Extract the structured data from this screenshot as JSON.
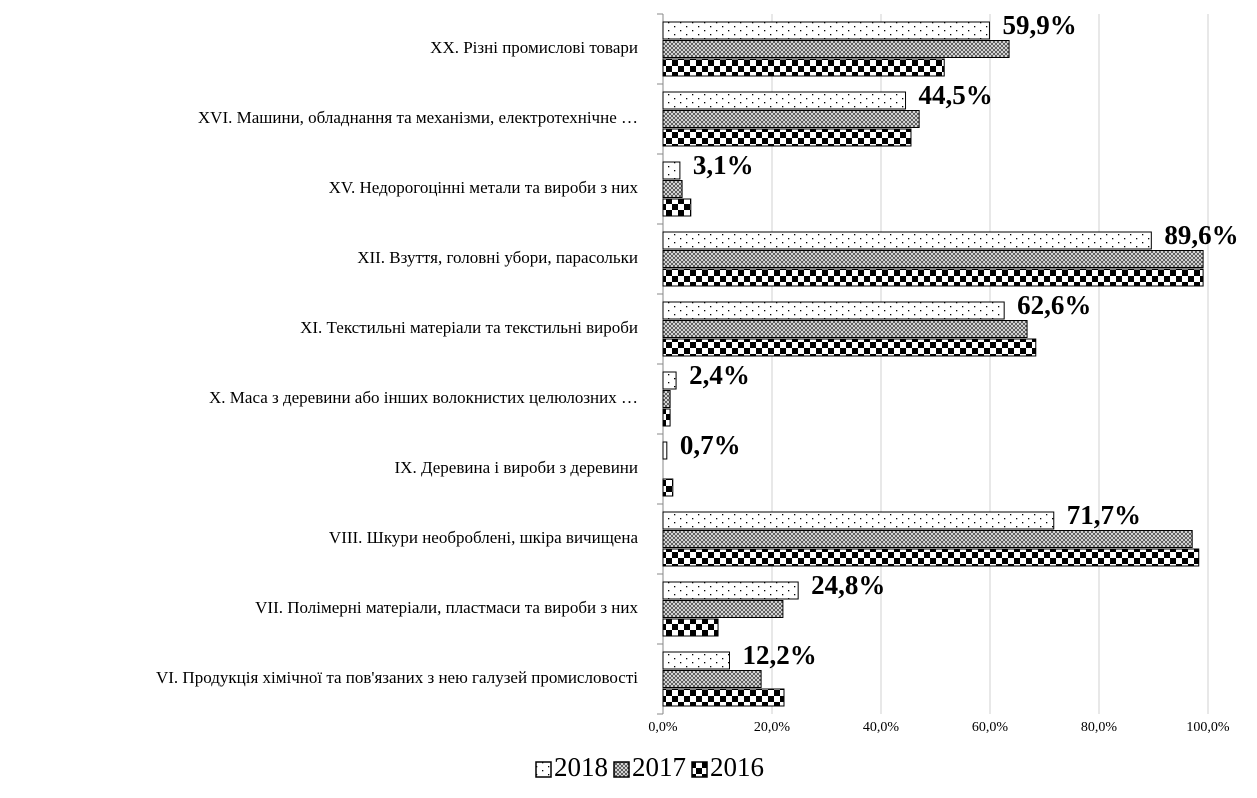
{
  "chart_data": {
    "type": "barh",
    "categories": [
      "XX. Різні промислові товари",
      "XVI. Машини, обладнання та механізми, електротехнічне …",
      "XV. Недорогоцінні метали та вироби з них",
      "XII. Взуття, головні убори, парасольки",
      "XI. Текстильні матеріали та текстильні вироби",
      "X. Маса з деревини або інших волокнистих целюлозних …",
      "IX. Деревина і вироби з деревини",
      "VIII. Шкури необроблені, шкіра вичищена",
      "VII. Полімерні матеріали, пластмаси та вироби з них",
      "VI. Продукція хімічної та пов'язаних з нею галузей промисловості"
    ],
    "series": [
      {
        "name": "2018",
        "color": "#ffffff",
        "pattern": "dots",
        "values": [
          59.9,
          44.5,
          3.1,
          89.6,
          62.6,
          2.4,
          0.7,
          71.7,
          24.8,
          12.2
        ],
        "value_labels": [
          "59,9%",
          "44,5%",
          "3,1%",
          "89,6%",
          "62,6%",
          "2,4%",
          "0,7%",
          "71,7%",
          "24,8%",
          "12,2%"
        ]
      },
      {
        "name": "2017",
        "color": "#808080",
        "pattern": "crosshatch",
        "values": [
          63.5,
          47.0,
          3.5,
          99.1,
          66.8,
          1.3,
          0,
          97.1,
          22.0,
          18.0
        ]
      },
      {
        "name": "2016",
        "color": "#000000",
        "pattern": "checker",
        "values": [
          51.6,
          45.5,
          5.1,
          99.1,
          68.4,
          1.3,
          1.8,
          98.3,
          10.1,
          22.2
        ]
      }
    ],
    "xlim": [
      0,
      100
    ],
    "xticks": [
      {
        "value": 0,
        "label": "0,0%"
      },
      {
        "value": 20,
        "label": "20,0%"
      },
      {
        "value": 40,
        "label": "40,0%"
      },
      {
        "value": 60,
        "label": "60,0%"
      },
      {
        "value": 80,
        "label": "80,0%"
      },
      {
        "value": 100,
        "label": "100,0%"
      }
    ],
    "grid": true,
    "legend": "bottom"
  }
}
